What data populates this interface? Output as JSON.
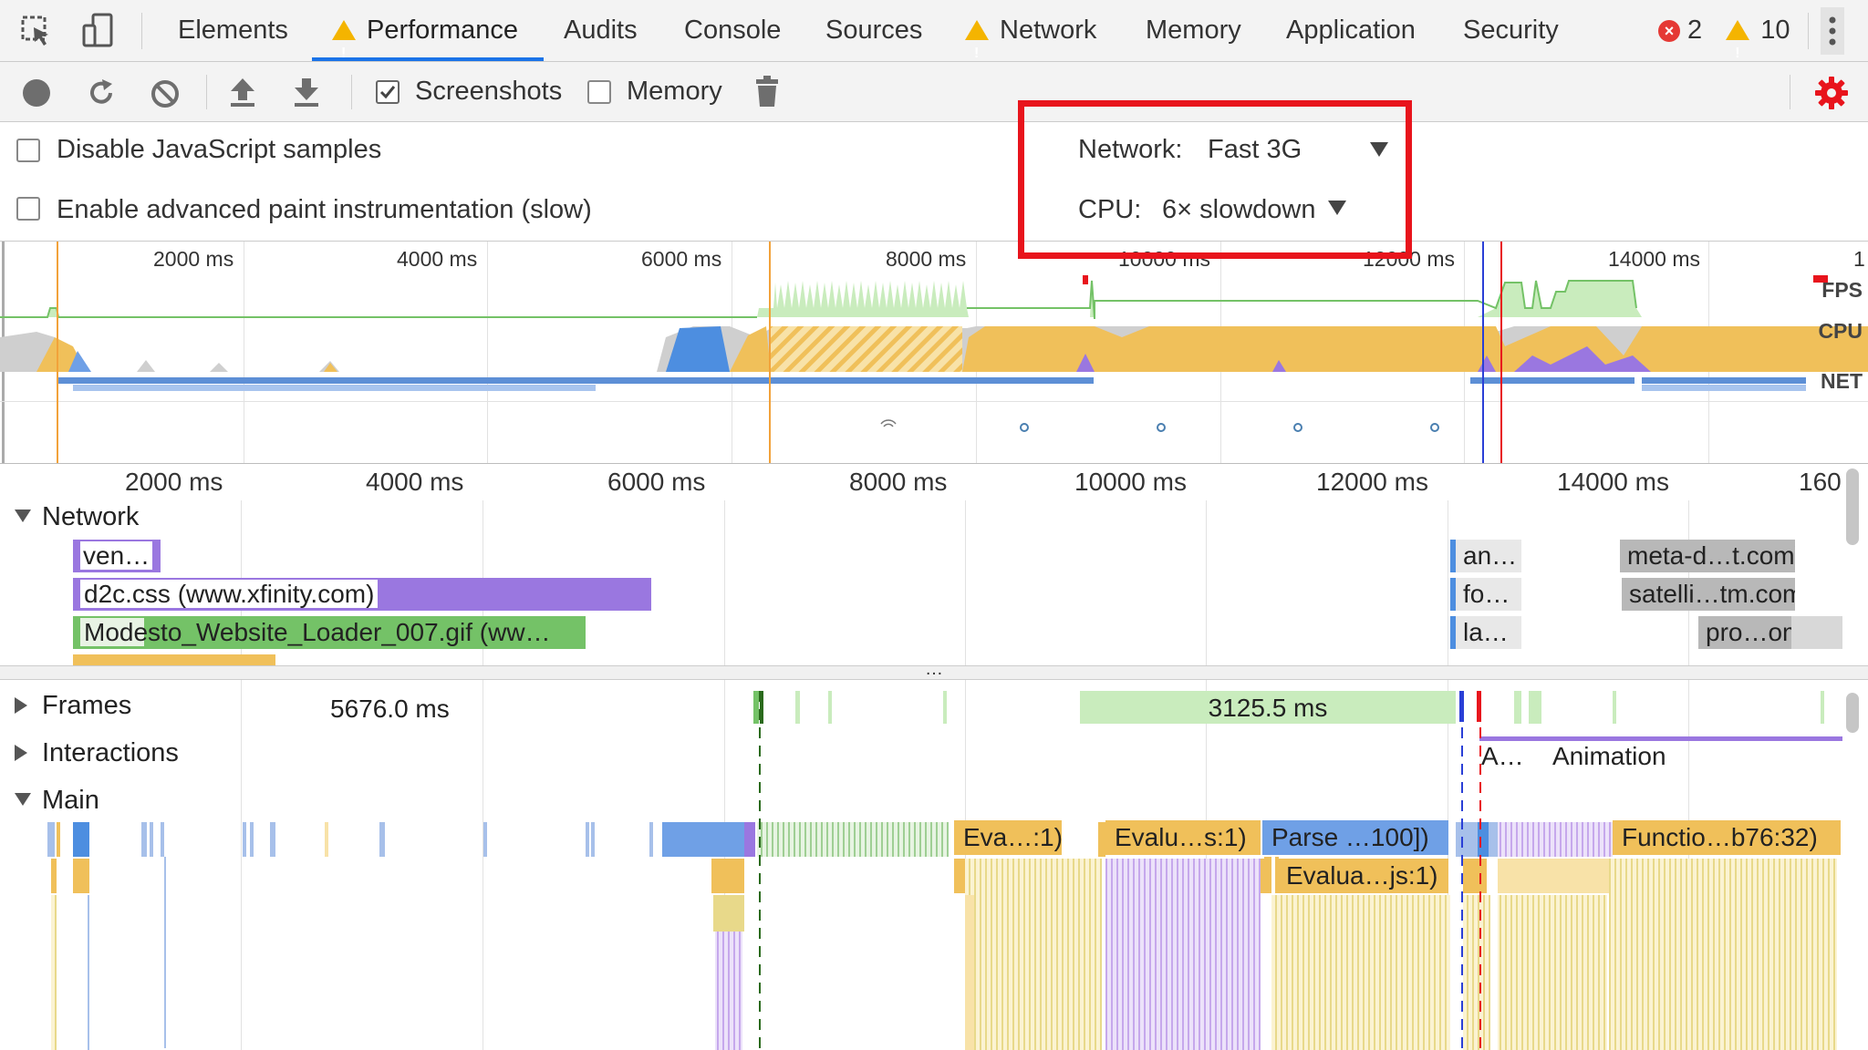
{
  "tabs": [
    {
      "label": "Elements",
      "warn": false
    },
    {
      "label": "Performance",
      "warn": true
    },
    {
      "label": "Audits",
      "warn": false
    },
    {
      "label": "Console",
      "warn": false
    },
    {
      "label": "Sources",
      "warn": false
    },
    {
      "label": "Network",
      "warn": true
    },
    {
      "label": "Memory",
      "warn": false
    },
    {
      "label": "Application",
      "warn": false
    },
    {
      "label": "Security",
      "warn": false
    }
  ],
  "status": {
    "errors": "2",
    "warnings": "10"
  },
  "toolbar": {
    "screenshots_label": "Screenshots",
    "memory_label": "Memory"
  },
  "settings": {
    "disable_js_label": "Disable JavaScript samples",
    "advanced_paint_label": "Enable advanced paint instrumentation (slow)",
    "network_label": "Network:",
    "network_value": "Fast 3G",
    "cpu_label": "CPU:",
    "cpu_value": "6× slowdown"
  },
  "overview": {
    "ticks": [
      "2000 ms",
      "4000 ms",
      "6000 ms",
      "8000 ms",
      "10000 ms",
      "12000 ms",
      "14000 ms",
      "1"
    ],
    "fps_label": "FPS",
    "cpu_label": "CPU",
    "net_label": "NET"
  },
  "ruler": {
    "ticks": [
      "2000 ms",
      "4000 ms",
      "6000 ms",
      "8000 ms",
      "10000 ms",
      "12000 ms",
      "14000 ms",
      "160"
    ]
  },
  "network_track": {
    "title": "Network",
    "bars": [
      "ven…",
      "d2c.css (www.xfinity.com)",
      "Modesto_Website_Loader_007.gif (ww…",
      "an…",
      "fo…",
      "la…",
      "meta-d…t.com)",
      "satelli…tm.com)",
      "pro…om)"
    ]
  },
  "frames": {
    "title": "Frames",
    "duration1": "5676.0 ms",
    "duration2": "3125.5 ms"
  },
  "interactions": {
    "title": "Interactions",
    "a_label": "A…",
    "animation_label": "Animation"
  },
  "main": {
    "title": "Main",
    "events": [
      "Eva…:1)",
      "Evalu…s:1)",
      "Parse …100])",
      "Functio…b76:32)",
      "Evalua…js:1)"
    ]
  },
  "divider_label": "…"
}
